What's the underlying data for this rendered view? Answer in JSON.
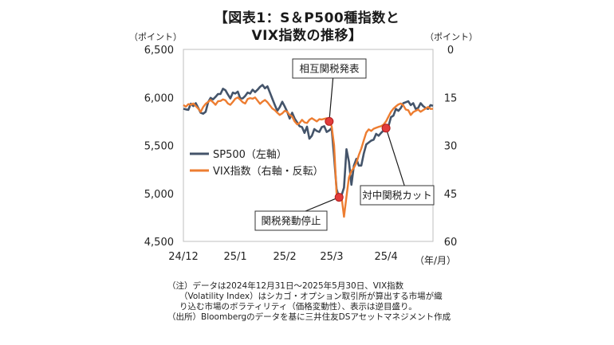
{
  "chart_data": {
    "type": "line",
    "title_line1": "【図表1：S＆P500種指数と",
    "title_line2": "VIX指数の推移】",
    "left_axis_unit": "（ポイント）",
    "right_axis_unit": "（ポイント）",
    "x_axis_unit": "（年/月）",
    "left_ylim": [
      4500,
      6500
    ],
    "left_yticks": [
      "6,500",
      "6,000",
      "5,500",
      "5,000",
      "4,500"
    ],
    "left_ytick_values": [
      6500,
      6000,
      5500,
      5000,
      4500
    ],
    "right_ylim": [
      0,
      60
    ],
    "right_inverted": true,
    "right_yticks": [
      "0",
      "15",
      "30",
      "45",
      "60"
    ],
    "right_ytick_values": [
      0,
      15,
      30,
      45,
      60
    ],
    "xticks": [
      "24/12",
      "25/1",
      "25/2",
      "25/3",
      "25/4"
    ],
    "xtick_positions": [
      0,
      21,
      41,
      60,
      82
    ],
    "grid": false,
    "legend_position": "left-middle",
    "series": [
      {
        "name": "SP500（左軸）",
        "axis": "left",
        "color": "#44546a",
        "x": [
          0,
          1,
          2,
          3,
          4,
          5,
          6,
          7,
          8,
          9,
          10,
          11,
          12,
          13,
          14,
          15,
          16,
          17,
          18,
          19,
          20,
          21,
          22,
          23,
          24,
          25,
          26,
          27,
          28,
          29,
          30,
          31,
          32,
          33,
          34,
          35,
          36,
          37,
          38,
          39,
          40,
          41,
          42,
          43,
          44,
          45,
          46,
          47,
          48,
          49,
          50,
          51,
          52,
          53,
          54,
          55,
          56,
          57,
          58,
          59,
          60,
          61,
          62,
          63,
          64,
          65,
          66,
          67,
          68,
          69,
          70,
          71,
          72,
          73,
          74,
          75,
          76,
          77,
          78,
          79,
          80,
          81,
          82,
          83,
          84,
          85,
          86,
          87,
          88,
          89,
          90,
          91,
          92,
          93,
          94,
          95,
          96,
          97,
          98,
          99,
          100,
          101
        ],
        "values": [
          5882,
          5875,
          5870,
          5935,
          5910,
          5940,
          5890,
          5840,
          5830,
          5850,
          5950,
          5995,
          5980,
          6005,
          6035,
          6035,
          6090,
          6075,
          6030,
          5990,
          6050,
          6040,
          6060,
          5990,
          5990,
          6015,
          6050,
          6040,
          6080,
          6055,
          6080,
          6110,
          6130,
          6095,
          6115,
          6050,
          5985,
          5920,
          5860,
          5900,
          5955,
          5905,
          5850,
          5780,
          5840,
          5780,
          5740,
          5700,
          5690,
          5630,
          5695,
          5570,
          5600,
          5670,
          5650,
          5640,
          5690,
          5700,
          5640,
          5655,
          5680,
          5380,
          5045,
          4960,
          4980,
          5060,
          5460,
          5330,
          5090,
          5290,
          5360,
          5290,
          5290,
          5415,
          5510,
          5530,
          5550,
          5560,
          5620,
          5600,
          5630,
          5655,
          5680,
          5700,
          5795,
          5810,
          5880,
          5860,
          5890,
          5940,
          5950,
          5960,
          5920,
          5940,
          5880,
          5890,
          5940,
          5910,
          5890,
          5880,
          5920,
          5912
        ]
      },
      {
        "name": "VIX指数（右軸・反転）",
        "axis": "right",
        "color": "#ed7d31",
        "x": [
          0,
          1,
          2,
          3,
          4,
          5,
          6,
          7,
          8,
          9,
          10,
          11,
          12,
          13,
          14,
          15,
          16,
          17,
          18,
          19,
          20,
          21,
          22,
          23,
          24,
          25,
          26,
          27,
          28,
          29,
          30,
          31,
          32,
          33,
          34,
          35,
          36,
          37,
          38,
          39,
          40,
          41,
          42,
          43,
          44,
          45,
          46,
          47,
          48,
          49,
          50,
          51,
          52,
          53,
          54,
          55,
          56,
          57,
          58,
          59,
          60,
          61,
          62,
          63,
          64,
          65,
          66,
          67,
          68,
          69,
          70,
          71,
          72,
          73,
          74,
          75,
          76,
          77,
          78,
          79,
          80,
          81,
          82,
          83,
          84,
          85,
          86,
          87,
          88,
          89,
          90,
          91,
          92,
          93,
          94,
          95,
          96,
          97,
          98,
          99,
          100,
          101
        ],
        "values": [
          17.4,
          17.9,
          17.1,
          17.3,
          16.9,
          17.7,
          18.5,
          19.5,
          18.0,
          17.0,
          16.4,
          15.8,
          16.5,
          17.3,
          16.2,
          16.1,
          15.6,
          15.9,
          16.9,
          17.3,
          16.4,
          15.4,
          15.0,
          15.7,
          16.5,
          16.9,
          15.5,
          15.2,
          15.4,
          15.0,
          16.0,
          17.0,
          16.3,
          15.8,
          16.5,
          17.5,
          18.5,
          19.0,
          19.8,
          20.5,
          20.0,
          19.2,
          19.5,
          20.5,
          21.0,
          22.5,
          23.4,
          23.0,
          22.0,
          22.8,
          23.0,
          22.0,
          21.5,
          22.0,
          22.5,
          21.8,
          21.9,
          21.7,
          21.5,
          22.5,
          24.0,
          30.0,
          45.0,
          47.0,
          46.0,
          52.3,
          46.0,
          40.0,
          38.0,
          37.0,
          35.5,
          33.0,
          31.0,
          28.4,
          26.0,
          25.0,
          25.5,
          24.8,
          24.5,
          24.2,
          24.0,
          23.5,
          22.5,
          21.0,
          19.5,
          18.5,
          17.8,
          17.2,
          16.9,
          17.5,
          18.8,
          19.0,
          20.5,
          19.6,
          19.2,
          18.8,
          19.5,
          19.0,
          18.5,
          18.0,
          18.6,
          18.57
        ]
      }
    ],
    "annotations": [
      {
        "label": "相互関税発表",
        "series": 1,
        "x": 59
      },
      {
        "label": "関税発動停止",
        "series": 0,
        "x": 63
      },
      {
        "label": "対中関税カット",
        "series": 0,
        "x": 82
      }
    ]
  },
  "notes": [
    "（注）データは2024年12月31日～2025年5月30日、VIX指数",
    "（Volatility Index）はシカゴ・オプション取引所が算出する市場が織",
    "り込む市場のボラティリティ（価格変動性）、表示は逆目盛り。",
    "（出所）Bloombergのデータを基に三井住友DSアセットマネジメント作成"
  ]
}
